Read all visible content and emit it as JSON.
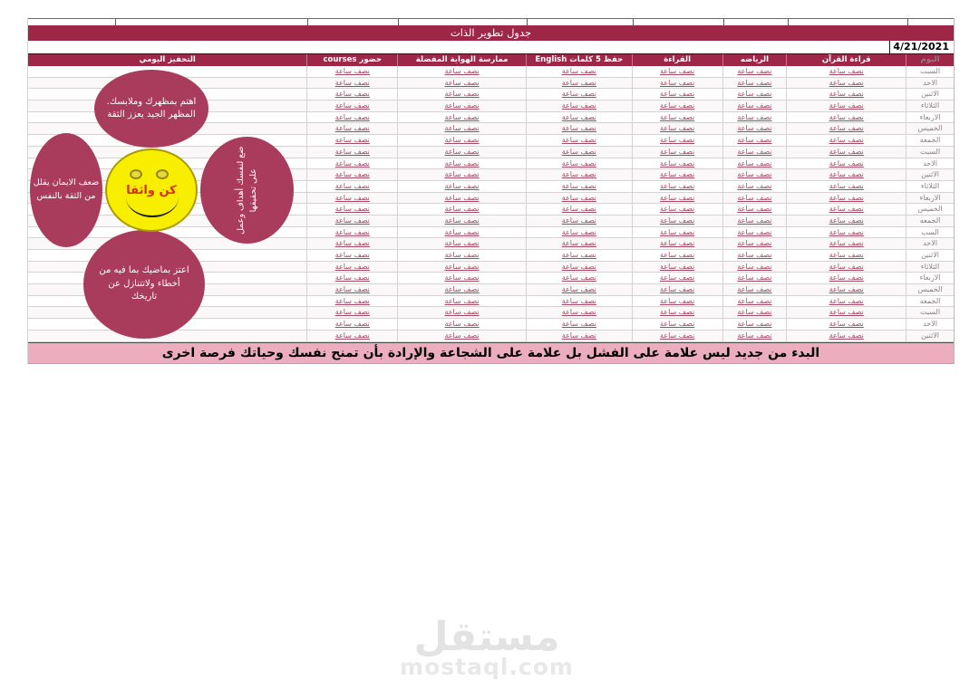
{
  "app": {
    "title": "جدول تطوير الذات",
    "date": "4/21/2021"
  },
  "table": {
    "columns": [
      {
        "label": "اليوم"
      },
      {
        "label": "قراءة القرآن"
      },
      {
        "label": "الرياضه"
      },
      {
        "label": "القراءة"
      },
      {
        "label": "حفظ 5 كلمات English"
      },
      {
        "label": "ممارسة الهواية المفضلة"
      },
      {
        "label": "حضور courses"
      },
      {
        "label": "التحفيز اليومي"
      }
    ],
    "cell_value": "نصف ساعة",
    "days": [
      "السبت",
      "الاحد",
      "الاثنين",
      "الثلاثاء",
      "الاربعاء",
      "الخميس",
      "الجمعه",
      "السبت",
      "الاحد",
      "الاثنين",
      "الثلاثاء",
      "الاربعاء",
      "الخميس",
      "الجمعه",
      "السب",
      "الاحد",
      "الاثنين",
      "الثلاثاء",
      "الاربعاء",
      "الخميس",
      "الجمعه",
      "السبت",
      "الاحد",
      "الاثنين"
    ]
  },
  "bubbles": {
    "top": "اهتم بمظهرك وملابسك. المظهر الجيد يعزز الثقة",
    "left": "ضعف الايمان يقلل من الثقة بالنفس",
    "right": "ضع لنفسك أهداف وعمل على تحقيقها",
    "bottom": "اعتز بماضيك بما فيه من أخطاء ولاتتنازل عن تاريخك",
    "smiley_label": "كن واثقا"
  },
  "banner": {
    "text": "البدء من جديد ليس علامة على  الفشل بل علامة على الشجاعة والإرادة  بأن تمنح نفسك وحياتك فرصة اخرى"
  },
  "watermark": {
    "logo": "مستقل",
    "domain": "mostaql.com"
  },
  "colors": {
    "accent_maroon": "#9e2747",
    "bubble_maroon": "#a93c5c",
    "banner_pink": "#ecadbe",
    "smiley_yellow": "#f8ee00",
    "cell_text": "#a34a62"
  }
}
